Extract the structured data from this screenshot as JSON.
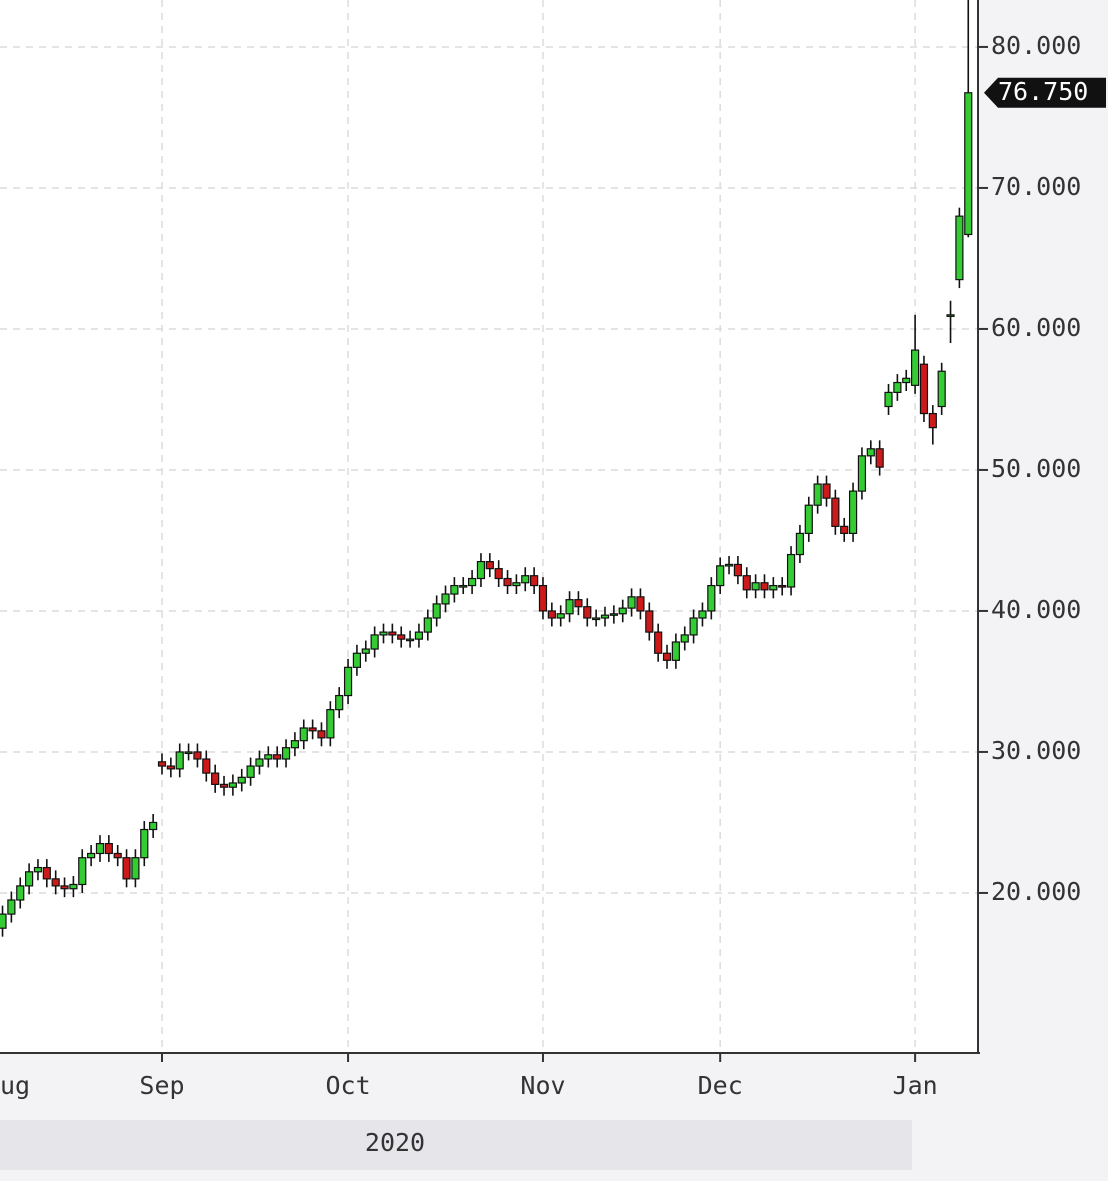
{
  "chart_data": {
    "type": "candlestick",
    "categories": [
      "ug",
      null,
      null,
      null,
      null,
      null,
      null,
      null,
      null,
      null,
      null,
      null,
      null,
      null,
      null,
      null,
      null,
      null,
      "Sep",
      null,
      null,
      null,
      null,
      null,
      null,
      null,
      null,
      null,
      null,
      null,
      null,
      null,
      null,
      null,
      null,
      null,
      null,
      null,
      null,
      "Oct",
      null,
      null,
      null,
      null,
      null,
      null,
      null,
      null,
      null,
      null,
      null,
      null,
      null,
      null,
      null,
      null,
      null,
      null,
      null,
      null,
      null,
      "Nov",
      null,
      null,
      null,
      null,
      null,
      null,
      null,
      null,
      null,
      null,
      null,
      null,
      null,
      null,
      null,
      null,
      null,
      null,
      null,
      "Dec",
      null,
      null,
      null,
      null,
      null,
      null,
      null,
      null,
      null,
      null,
      null,
      null,
      null,
      null,
      null,
      null,
      null,
      null,
      null,
      null,
      null,
      "Jan",
      null,
      null,
      null,
      null,
      null,
      null
    ],
    "open": [
      17.5,
      18.5,
      19.5,
      20.5,
      21.5,
      21.8,
      21,
      20.5,
      20.3,
      20.6,
      22.5,
      22.8,
      23.5,
      22.8,
      22.5,
      21,
      22.5,
      24.5,
      29.3,
      29,
      28.8,
      30,
      30,
      29.5,
      28.5,
      27.7,
      27.5,
      27.8,
      28.2,
      29,
      29.5,
      29.8,
      29.5,
      30.3,
      30.8,
      31.7,
      31.5,
      31,
      33,
      34,
      36,
      37,
      37.3,
      38.3,
      38.5,
      38.3,
      38,
      38,
      38.5,
      39.5,
      40.5,
      41.2,
      41.8,
      41.8,
      42.3,
      43.5,
      43,
      42.3,
      41.8,
      42,
      42.5,
      41.8,
      40,
      39.5,
      39.8,
      40.8,
      40.3,
      39.5,
      39.5,
      39.7,
      39.8,
      40.2,
      41,
      40,
      38.5,
      37,
      36.5,
      37.8,
      38.3,
      39.5,
      40,
      41.8,
      43.2,
      43.3,
      42.5,
      41.5,
      42,
      41.5,
      41.8,
      41.7,
      44,
      45.5,
      47.5,
      49,
      48,
      46,
      45.5,
      48.5,
      51,
      51.5,
      54.5,
      55.5,
      56.2,
      56,
      57.5,
      54,
      54.5,
      60.9,
      63.5,
      66.7
    ],
    "high": [
      19.1,
      20.1,
      21.1,
      22.1,
      22.4,
      22.4,
      21.6,
      21.1,
      21.2,
      23.1,
      23.4,
      24.1,
      24.1,
      23.4,
      23.1,
      23.1,
      25.1,
      25.6,
      29.9,
      29.6,
      30.6,
      30.6,
      30.6,
      30.1,
      29.1,
      28.3,
      28.4,
      28.8,
      29.6,
      30.1,
      30.4,
      30.4,
      30.9,
      31.4,
      32.3,
      32.3,
      32.1,
      33.6,
      34.6,
      36.6,
      37.6,
      37.9,
      38.9,
      39.1,
      39.1,
      38.9,
      38.6,
      39.1,
      40.1,
      41.1,
      41.8,
      42.4,
      42.4,
      42.9,
      44.1,
      44.1,
      43.6,
      42.9,
      42.6,
      43.1,
      43.1,
      42.4,
      40.6,
      40.4,
      41.4,
      41.4,
      40.9,
      40.1,
      40.3,
      40.4,
      40.8,
      41.6,
      41.6,
      40.6,
      39.1,
      37.6,
      38.4,
      38.9,
      40.1,
      40.6,
      42.4,
      43.8,
      43.9,
      43.9,
      43.1,
      42.6,
      42.6,
      42.4,
      42.4,
      44.6,
      46.1,
      48.1,
      49.6,
      49.6,
      48.6,
      46.6,
      49.1,
      51.6,
      52.1,
      52.1,
      56.1,
      56.8,
      57.1,
      61,
      58.1,
      54.6,
      57.6,
      62,
      68.6,
      83.5
    ],
    "low": [
      16.9,
      17.9,
      18.9,
      19.9,
      20.9,
      20.4,
      19.9,
      19.7,
      19.7,
      20.0,
      21.9,
      22.2,
      22.2,
      21.9,
      20.4,
      20.4,
      21.9,
      23.9,
      28.4,
      28.2,
      28.2,
      29.4,
      28.9,
      27.9,
      27.1,
      26.9,
      26.9,
      27.2,
      27.6,
      28.4,
      28.9,
      28.9,
      28.9,
      29.7,
      30.2,
      30.9,
      30.4,
      30.4,
      32.4,
      33.4,
      35.4,
      36.4,
      36.7,
      37.7,
      37.7,
      37.4,
      37.4,
      37.4,
      37.9,
      38.9,
      39.9,
      40.6,
      41.2,
      41.2,
      41.7,
      42.4,
      41.7,
      41.2,
      41.2,
      41.4,
      41.2,
      39.4,
      38.9,
      38.9,
      39.2,
      39.7,
      38.9,
      38.9,
      38.9,
      39.1,
      39.2,
      39.6,
      39.4,
      37.9,
      36.4,
      35.9,
      35.9,
      37.2,
      37.7,
      38.9,
      39.4,
      41.2,
      42.6,
      41.9,
      40.9,
      40.9,
      40.9,
      40.9,
      41.1,
      41.1,
      43.4,
      44.9,
      46.9,
      47.4,
      45.4,
      44.9,
      44.9,
      47.9,
      50.4,
      49.6,
      53.9,
      54.9,
      55.6,
      55.4,
      53.4,
      51.8,
      53.9,
      59,
      62.9,
      66.5
    ],
    "close": [
      18.5,
      19.5,
      20.5,
      21.5,
      21.8,
      21,
      20.5,
      20.3,
      20.6,
      22.5,
      22.8,
      23.5,
      22.8,
      22.5,
      21,
      22.5,
      24.5,
      25,
      29,
      28.8,
      30,
      30,
      29.5,
      28.5,
      27.7,
      27.5,
      27.8,
      28.2,
      29,
      29.5,
      29.8,
      29.5,
      30.3,
      30.8,
      31.7,
      31.5,
      31,
      33,
      34,
      36,
      37,
      37.3,
      38.3,
      38.5,
      38.3,
      38,
      38,
      38.5,
      39.5,
      40.5,
      41.2,
      41.8,
      41.8,
      42.3,
      43.5,
      43,
      42.3,
      41.8,
      42,
      42.5,
      41.8,
      40,
      39.5,
      39.8,
      40.8,
      40.3,
      39.5,
      39.5,
      39.7,
      39.8,
      40.2,
      41,
      40,
      38.5,
      37,
      36.5,
      37.8,
      38.3,
      39.5,
      40,
      41.8,
      43.2,
      43.3,
      42.5,
      41.5,
      42,
      41.5,
      41.8,
      41.7,
      44,
      45.5,
      47.5,
      49,
      48,
      46,
      45.5,
      48.5,
      51,
      51.5,
      50.2,
      55.5,
      56.2,
      56.5,
      58.5,
      54,
      53,
      57,
      61,
      68,
      76.75
    ],
    "up_color": "#33cc33",
    "down_color": "#cc1a1a",
    "ylim": [
      8.72,
      83.33
    ],
    "yticks": [
      {
        "value": 20,
        "label": "20.000"
      },
      {
        "value": 30,
        "label": "30.000"
      },
      {
        "value": 40,
        "label": "40.000"
      },
      {
        "value": 50,
        "label": "50.000"
      },
      {
        "value": 60,
        "label": "60.000"
      },
      {
        "value": 70,
        "label": "70.000"
      },
      {
        "value": 80,
        "label": "80.000"
      }
    ],
    "last_price": {
      "value": 76.75,
      "label": "76.750"
    },
    "year_label": "2020",
    "grid": true
  }
}
